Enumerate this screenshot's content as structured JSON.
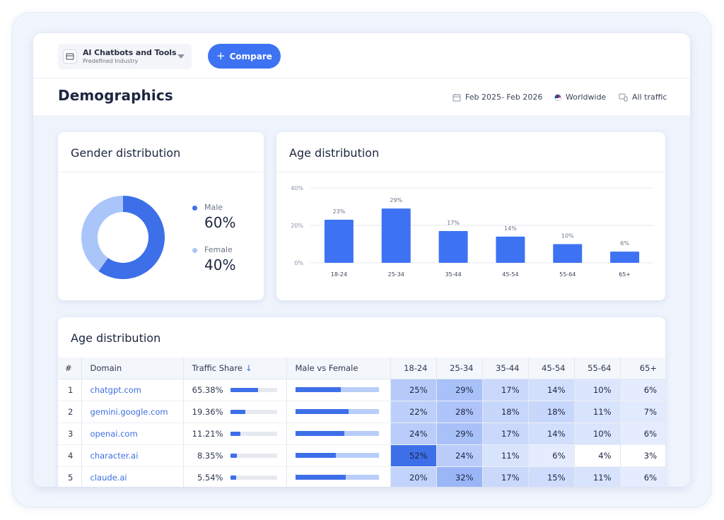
{
  "industry": {
    "title": "AI Chatbots and Tools",
    "subtitle": "Predefined Industry"
  },
  "compare_label": "Compare",
  "page_title": "Demographics",
  "filters": {
    "date": "Feb 2025- Feb 2026",
    "geo": "Worldwide",
    "traffic": "All traffic"
  },
  "colors": {
    "accent": "#3d73f3",
    "male": "#3d6fe8",
    "female": "#aac5fa"
  },
  "gender": {
    "title": "Gender distribution",
    "male_label": "Male",
    "male_value": "60%",
    "male_pct": 60,
    "female_label": "Female",
    "female_value": "40%",
    "female_pct": 40
  },
  "chart_data": {
    "type": "bar",
    "title": "Age distribution",
    "categories": [
      "18-24",
      "25-34",
      "35-44",
      "45-54",
      "55-64",
      "65+"
    ],
    "values": [
      23,
      29,
      17,
      14,
      10,
      6
    ],
    "value_labels": [
      "23%",
      "29%",
      "17%",
      "14%",
      "10%",
      "6%"
    ],
    "yticks": [
      "0%",
      "20%",
      "40%"
    ],
    "ylim": [
      0,
      40
    ],
    "grid": true
  },
  "table": {
    "title": "Age distribution",
    "headers": {
      "rank": "#",
      "domain": "Domain",
      "traffic": "Traffic Share",
      "sort_icon": "↓",
      "mf": "Male vs Female",
      "ages": [
        "18-24",
        "25-34",
        "35-44",
        "45-54",
        "55-64",
        "65+"
      ]
    },
    "rows": [
      {
        "rank": "1",
        "domain": "chatgpt.com",
        "share": "65.38%",
        "share_bar": 0.6,
        "male": 0.55,
        "ages": [
          "25%",
          "29%",
          "17%",
          "14%",
          "10%",
          "6%"
        ]
      },
      {
        "rank": "2",
        "domain": "gemini.google.com",
        "share": "19.36%",
        "share_bar": 0.32,
        "male": 0.64,
        "ages": [
          "22%",
          "28%",
          "18%",
          "18%",
          "11%",
          "7%"
        ]
      },
      {
        "rank": "3",
        "domain": "openai.com",
        "share": "11.21%",
        "share_bar": 0.22,
        "male": 0.59,
        "ages": [
          "24%",
          "29%",
          "17%",
          "14%",
          "10%",
          "6%"
        ]
      },
      {
        "rank": "4",
        "domain": "character.ai",
        "share": "8.35%",
        "share_bar": 0.15,
        "male": 0.49,
        "ages": [
          "52%",
          "24%",
          "11%",
          "6%",
          "4%",
          "3%"
        ]
      },
      {
        "rank": "5",
        "domain": "claude.ai",
        "share": "5.54%",
        "share_bar": 0.13,
        "male": 0.61,
        "ages": [
          "20%",
          "32%",
          "17%",
          "15%",
          "11%",
          "6%"
        ]
      }
    ]
  }
}
